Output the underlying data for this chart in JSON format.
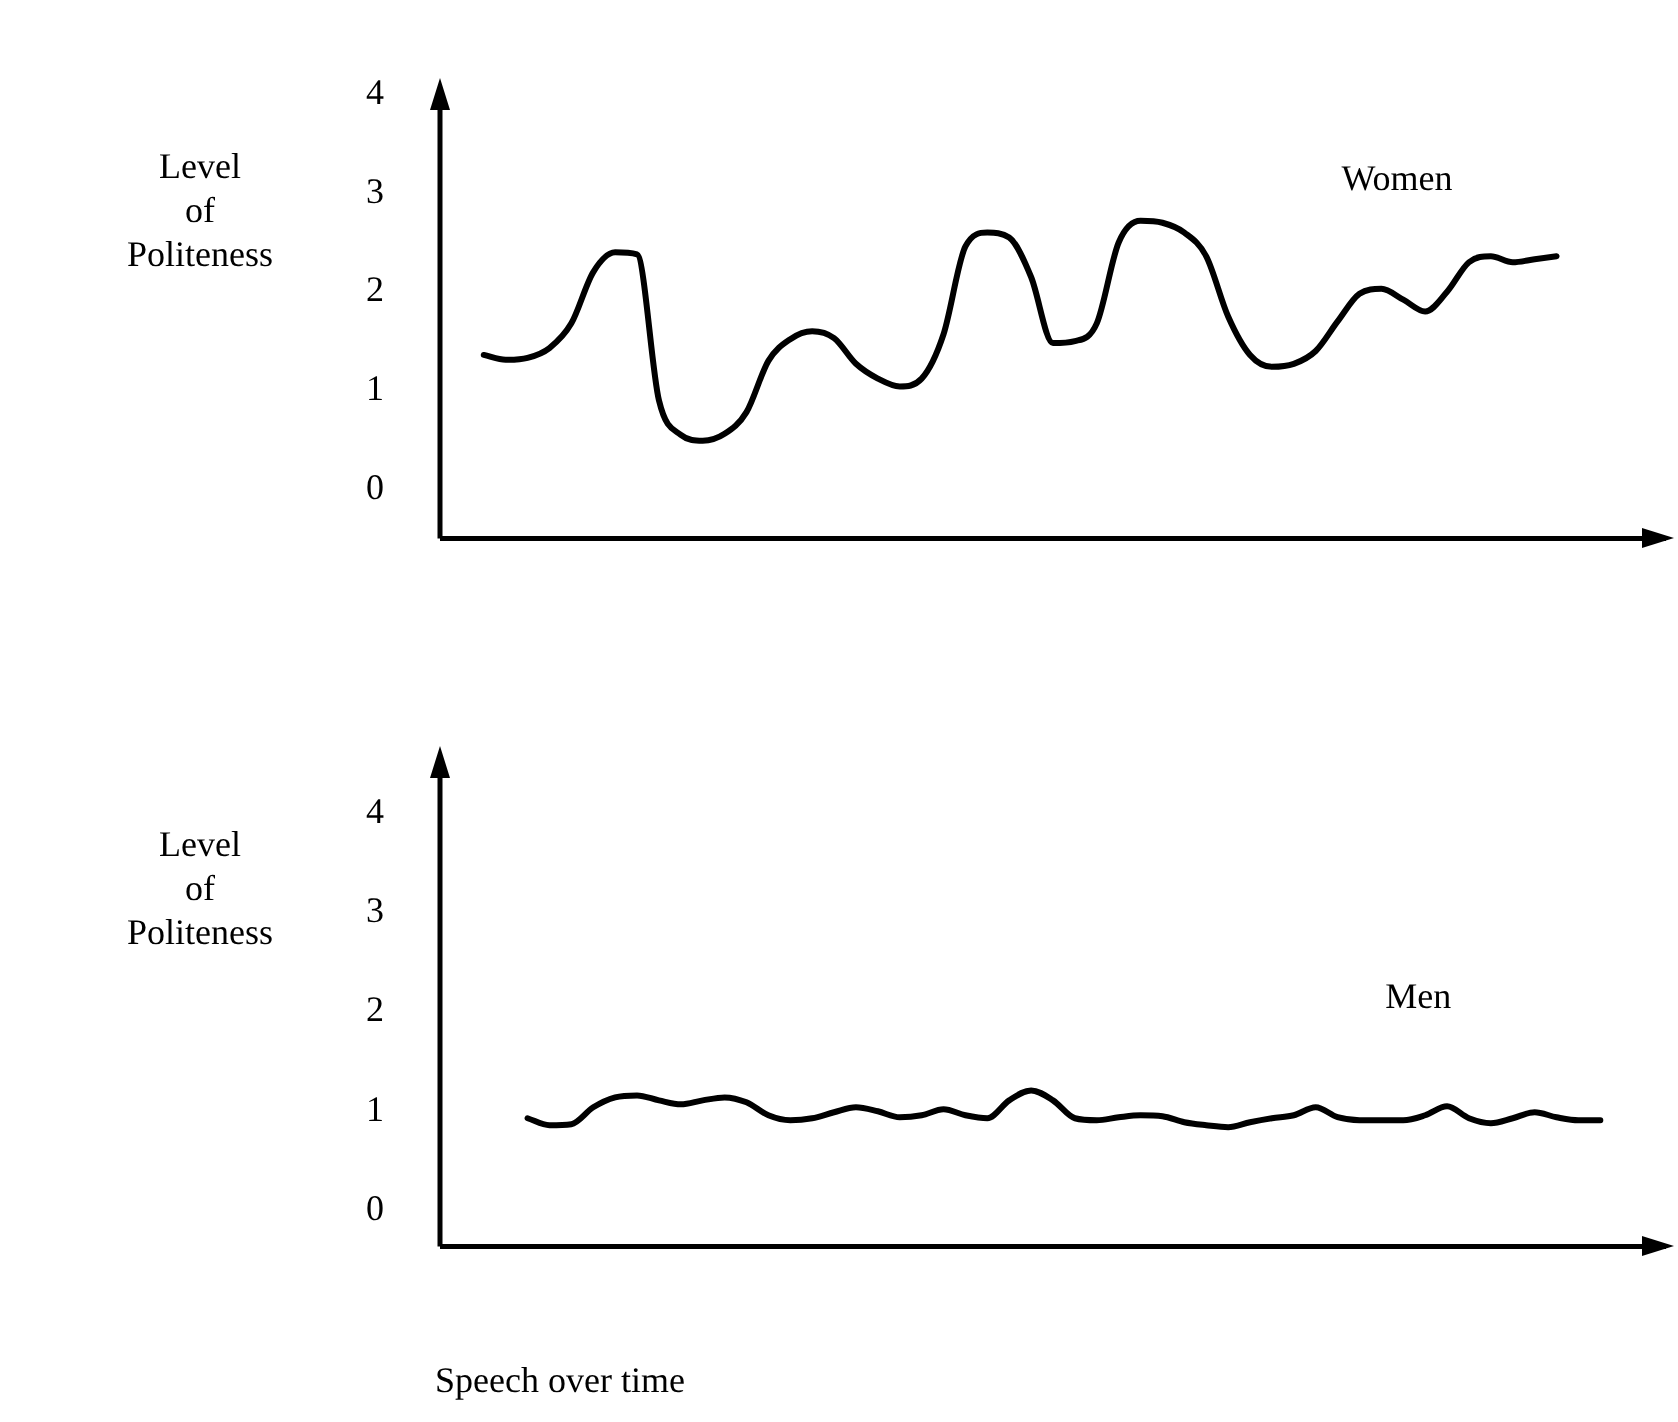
{
  "chart_data": [
    {
      "type": "line",
      "ylabel": "Level\nof\nPoliteness",
      "categories": [
        null,
        null,
        null,
        null,
        null,
        null,
        null,
        null,
        null,
        null,
        null,
        null,
        null,
        null,
        null,
        null,
        null,
        null,
        null,
        null,
        null,
        null,
        null,
        null,
        null,
        null,
        null,
        null,
        null,
        null,
        null,
        null,
        null,
        null,
        null,
        null,
        null,
        null,
        null,
        null,
        null,
        null,
        null,
        null,
        null,
        null,
        null,
        null,
        null,
        null,
        null,
        null,
        null,
        null,
        null,
        null,
        null
      ],
      "ylim": [
        -0.5,
        4.05
      ],
      "yticks": [
        0,
        1,
        2,
        3,
        4
      ],
      "grid": false,
      "legend": false,
      "marker": "none",
      "line_style": "solid",
      "tick_labels": "y",
      "series": [
        {
          "name": "Women",
          "color": "#000000",
          "values": [
            null,
            null,
            1.36,
            1.31,
            1.33,
            1.43,
            1.68,
            2.2,
            2.4,
            2.38,
            0.9,
            0.55,
            0.49,
            0.56,
            0.78,
            1.3,
            1.52,
            1.6,
            1.53,
            1.27,
            1.12,
            1.04,
            1.12,
            1.57,
            2.46,
            2.6,
            2.55,
            2.15,
            1.48,
            1.5,
            1.68,
            2.5,
            2.72,
            2.7,
            2.6,
            2.36,
            1.75,
            1.36,
            1.24,
            1.27,
            1.4,
            1.7,
            1.98,
            2.03,
            1.92,
            1.8,
            2.0,
            2.3,
            2.36,
            2.3,
            2.33,
            2.36,
            null,
            null,
            null,
            null,
            null
          ]
        }
      ]
    },
    {
      "type": "line",
      "ylabel": "Level\nof\nPoliteness",
      "xlabel": "Speech over time",
      "categories": [
        null,
        null,
        null,
        null,
        null,
        null,
        null,
        null,
        null,
        null,
        null,
        null,
        null,
        null,
        null,
        null,
        null,
        null,
        null,
        null,
        null,
        null,
        null,
        null,
        null,
        null,
        null,
        null,
        null,
        null,
        null,
        null,
        null,
        null,
        null,
        null,
        null,
        null,
        null,
        null,
        null,
        null,
        null,
        null,
        null,
        null,
        null,
        null,
        null,
        null,
        null,
        null,
        null,
        null,
        null,
        null,
        null
      ],
      "ylim": [
        -0.36,
        4.56
      ],
      "yticks": [
        0,
        1,
        2,
        3,
        4
      ],
      "grid": false,
      "legend": false,
      "marker": "none",
      "line_style": "solid",
      "tick_labels": "y",
      "series": [
        {
          "name": "Men",
          "color": "#000000",
          "values": [
            null,
            null,
            null,
            null,
            0.93,
            0.86,
            0.87,
            1.04,
            1.14,
            1.16,
            1.11,
            1.07,
            1.11,
            1.14,
            1.09,
            0.96,
            0.91,
            0.93,
            0.99,
            1.04,
            1.0,
            0.94,
            0.96,
            1.02,
            0.96,
            0.93,
            1.11,
            1.21,
            1.11,
            0.93,
            0.91,
            0.94,
            0.96,
            0.95,
            0.89,
            0.86,
            0.84,
            0.89,
            0.93,
            0.96,
            1.04,
            0.94,
            0.91,
            0.91,
            0.91,
            0.96,
            1.05,
            0.93,
            0.88,
            0.93,
            0.99,
            0.94,
            0.91,
            0.91,
            null,
            null,
            null
          ]
        }
      ]
    }
  ]
}
